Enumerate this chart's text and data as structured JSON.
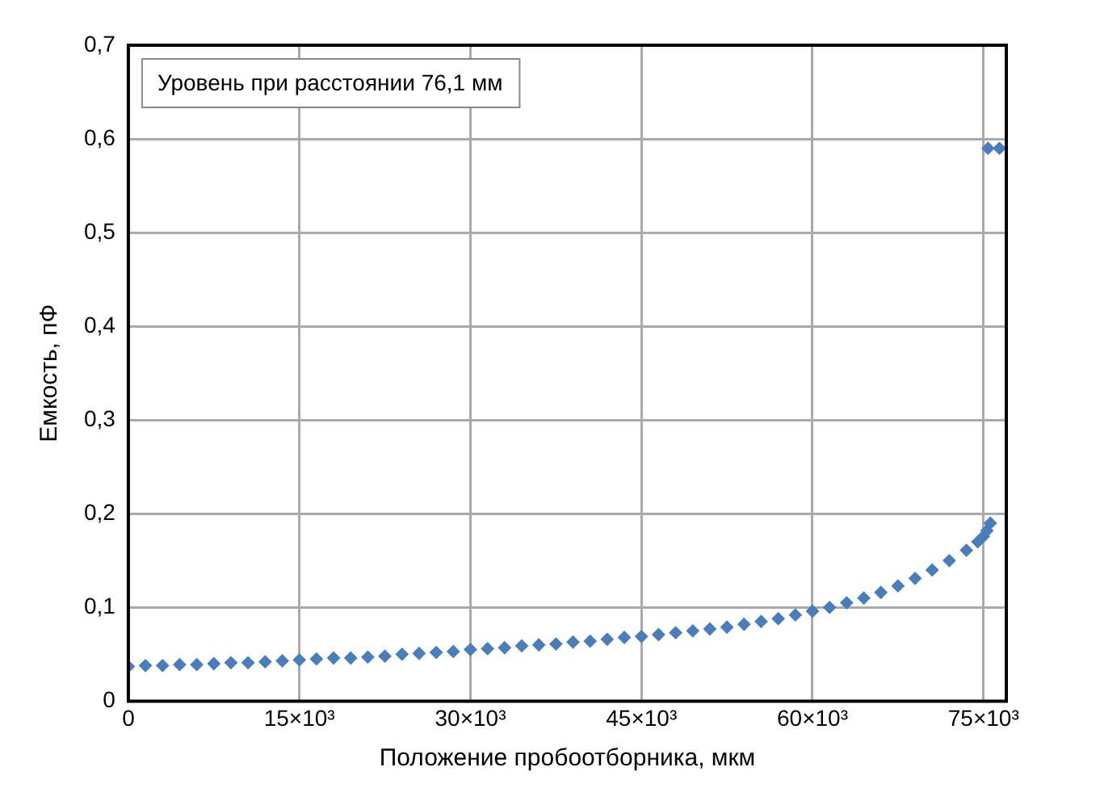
{
  "chart_data": {
    "type": "scatter",
    "xlabel": "Положение пробоотборника, мкм",
    "ylabel": "Емкость, пФ",
    "annotations": [
      "Уровень при расстоянии 76,1 мм"
    ],
    "series": [
      {
        "color": "#4a7ebb",
        "x": [
          0,
          1500,
          3000,
          4500,
          6000,
          7500,
          9000,
          10500,
          12000,
          13500,
          15000,
          16500,
          18000,
          19500,
          21000,
          22500,
          24000,
          25500,
          27000,
          28500,
          30000,
          31500,
          33000,
          34500,
          36000,
          37500,
          39000,
          40500,
          42000,
          43500,
          45000,
          46500,
          48000,
          49500,
          51000,
          52500,
          54000,
          55500,
          57000,
          58500,
          60000,
          61500,
          63000,
          64500,
          66000,
          67500,
          69000,
          70500,
          72000,
          73500,
          74500,
          75000,
          75300,
          75600,
          75400,
          76400
        ],
        "values": [
          0.037,
          0.038,
          0.038,
          0.039,
          0.039,
          0.04,
          0.041,
          0.041,
          0.042,
          0.043,
          0.044,
          0.045,
          0.046,
          0.046,
          0.047,
          0.048,
          0.05,
          0.051,
          0.052,
          0.053,
          0.055,
          0.056,
          0.057,
          0.059,
          0.06,
          0.061,
          0.063,
          0.064,
          0.066,
          0.068,
          0.069,
          0.071,
          0.073,
          0.075,
          0.077,
          0.079,
          0.082,
          0.085,
          0.088,
          0.092,
          0.096,
          0.1,
          0.105,
          0.11,
          0.116,
          0.123,
          0.131,
          0.14,
          0.15,
          0.161,
          0.17,
          0.176,
          0.182,
          0.19,
          0.59,
          0.59
        ]
      }
    ],
    "xlim": [
      0,
      77000
    ],
    "xticks": [
      0,
      {
        "value": 15000,
        "label": "15×10³"
      },
      {
        "value": 30000,
        "label": "30×10³"
      },
      {
        "value": 45000,
        "label": "45×10³"
      },
      {
        "value": 60000,
        "label": "60×10³"
      },
      {
        "value": 75000,
        "label": "75×10³"
      }
    ],
    "ylim": [
      0,
      0.7
    ],
    "yticks": [
      0,
      {
        "value": 0.1,
        "label": "0,1"
      },
      {
        "value": 0.2,
        "label": "0,2"
      },
      {
        "value": 0.3,
        "label": "0,3"
      },
      {
        "value": 0.4,
        "label": "0,4"
      },
      {
        "value": 0.5,
        "label": "0,5"
      },
      {
        "value": 0.6,
        "label": "0,6"
      },
      {
        "value": 0.7,
        "label": "0,7"
      }
    ],
    "grid": true,
    "legend": false,
    "marker": "diamond"
  }
}
